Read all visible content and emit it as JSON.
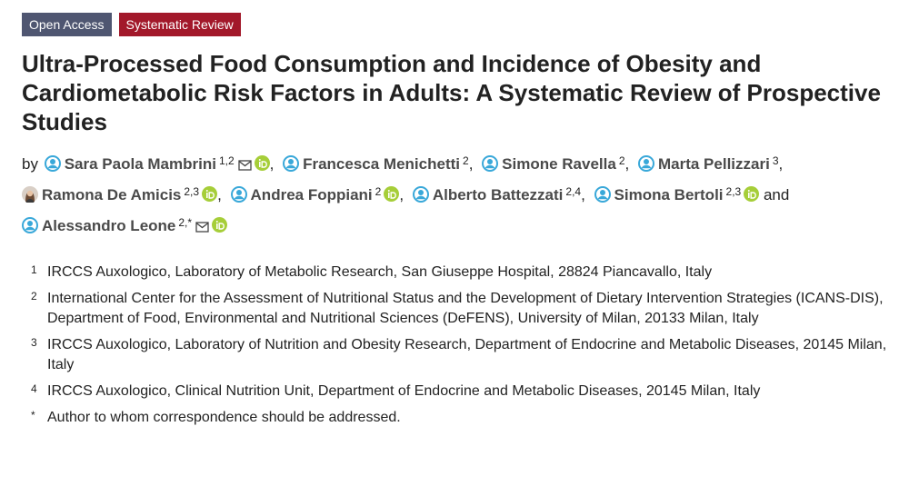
{
  "tags": {
    "access": "Open Access",
    "type": "Systematic Review"
  },
  "title": "Ultra-Processed Food Consumption and Incidence of Obesity and Cardiometabolic Risk Factors in Adults: A Systematic Review of Prospective Studies",
  "byline": {
    "prefix": "by",
    "authors": [
      {
        "name": "Sara Paola Mambrini",
        "aff": "1,2",
        "sep": ","
      },
      {
        "name": "Francesca Menichetti",
        "aff": "2",
        "sep": ","
      },
      {
        "name": "Simone Ravella",
        "aff": "2",
        "sep": ","
      },
      {
        "name": "Marta Pellizzari",
        "aff": "3",
        "sep": ","
      },
      {
        "name": "Ramona De Amicis",
        "aff": "2,3",
        "sep": ","
      },
      {
        "name": "Andrea Foppiani",
        "aff": "2",
        "sep": ","
      },
      {
        "name": "Alberto Battezzati",
        "aff": "2,4",
        "sep": ","
      },
      {
        "name": "Simona Bertoli",
        "aff": "2,3",
        "sep": "and"
      },
      {
        "name": "Alessandro Leone",
        "aff": "2,*",
        "sep": ""
      }
    ]
  },
  "affiliations": [
    {
      "num": "1",
      "text": "IRCCS Auxologico, Laboratory of Metabolic Research, San Giuseppe Hospital, 28824 Piancavallo, Italy"
    },
    {
      "num": "2",
      "text": "International Center for the Assessment of Nutritional Status and the Development of Dietary Intervention Strategies (ICANS-DIS), Department of Food, Environmental and Nutritional Sciences (DeFENS), University of Milan, 20133 Milan, Italy"
    },
    {
      "num": "3",
      "text": "IRCCS Auxologico, Laboratory of Nutrition and Obesity Research, Department of Endocrine and Metabolic Diseases, 20145 Milan, Italy"
    },
    {
      "num": "4",
      "text": "IRCCS Auxologico, Clinical Nutrition Unit, Department of Endocrine and Metabolic Diseases, 20145 Milan, Italy"
    },
    {
      "num": "*",
      "text": "Author to whom correspondence should be addressed."
    }
  ],
  "colors": {
    "access_tag": "#4f5671",
    "type_tag": "#a2182a",
    "author_icon": "#39a8d9",
    "orcid": "#a6ce39"
  },
  "icons": {
    "author": "user-circle-icon",
    "photo": "avatar",
    "email": "envelope-icon",
    "orcid": "orcid-icon"
  }
}
